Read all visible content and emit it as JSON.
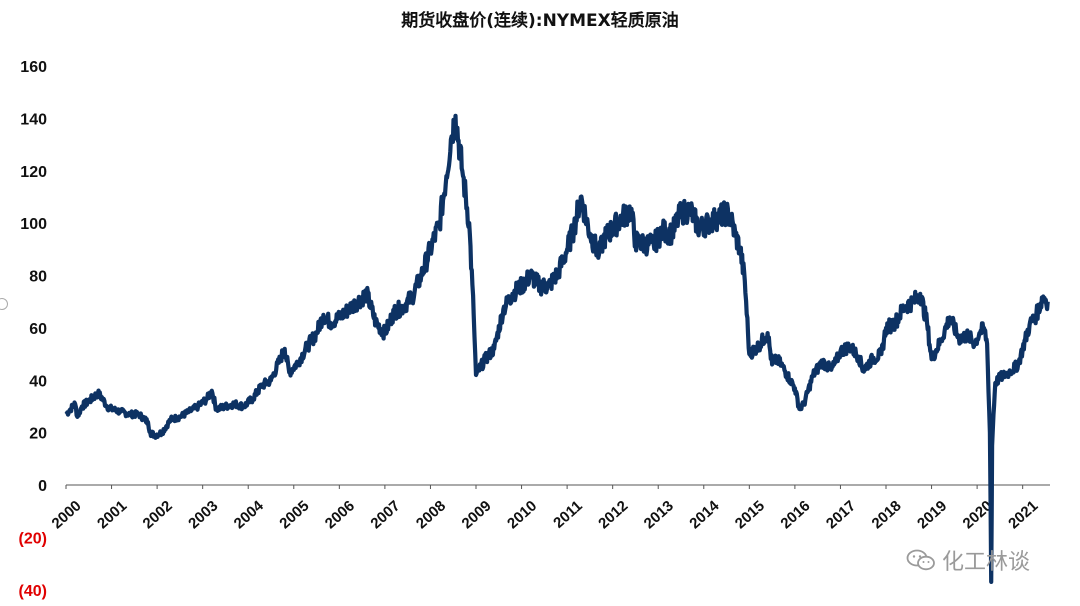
{
  "chart_data": {
    "type": "line",
    "title": "期货收盘价(连续):NYMEX轻质原油",
    "xlabel": "",
    "ylabel": "",
    "ylim": [
      -40,
      160
    ],
    "y_ticks": [
      "160",
      "140",
      "120",
      "100",
      "80",
      "60",
      "40",
      "20",
      "0",
      "(20)",
      "(40)"
    ],
    "x_ticks": [
      "2000",
      "2001",
      "2002",
      "2003",
      "2004",
      "2005",
      "2006",
      "2007",
      "2008",
      "2009",
      "2010",
      "2011",
      "2012",
      "2013",
      "2014",
      "2015",
      "2016",
      "2017",
      "2018",
      "2019",
      "2020",
      "2021"
    ],
    "xlim": [
      2000,
      2021.6
    ],
    "series": [
      {
        "name": "NYMEX轻质原油",
        "color": "#0d3263",
        "x": [
          2000.0,
          2000.1,
          2000.2,
          2000.25,
          2000.35,
          2000.5,
          2000.7,
          2000.8,
          2000.9,
          2001.0,
          2001.2,
          2001.4,
          2001.6,
          2001.8,
          2001.85,
          2001.95,
          2002.1,
          2002.3,
          2002.5,
          2002.7,
          2002.9,
          2003.1,
          2003.2,
          2003.3,
          2003.5,
          2003.7,
          2003.9,
          2004.1,
          2004.3,
          2004.5,
          2004.7,
          2004.8,
          2004.9,
          2005.1,
          2005.3,
          2005.5,
          2005.65,
          2005.8,
          2006.0,
          2006.2,
          2006.4,
          2006.6,
          2006.8,
          2007.0,
          2007.2,
          2007.4,
          2007.6,
          2007.8,
          2008.0,
          2008.2,
          2008.35,
          2008.45,
          2008.55,
          2008.7,
          2008.85,
          2008.95,
          2009.0,
          2009.2,
          2009.4,
          2009.6,
          2009.8,
          2010.0,
          2010.2,
          2010.4,
          2010.6,
          2010.8,
          2011.0,
          2011.15,
          2011.3,
          2011.5,
          2011.7,
          2011.8,
          2012.0,
          2012.2,
          2012.4,
          2012.5,
          2012.7,
          2012.9,
          2013.1,
          2013.3,
          2013.5,
          2013.7,
          2013.9,
          2014.1,
          2014.3,
          2014.5,
          2014.6,
          2014.7,
          2014.8,
          2014.9,
          2015.0,
          2015.2,
          2015.4,
          2015.5,
          2015.6,
          2015.7,
          2015.9,
          2016.0,
          2016.1,
          2016.2,
          2016.4,
          2016.6,
          2016.8,
          2016.9,
          2017.0,
          2017.2,
          2017.4,
          2017.5,
          2017.7,
          2017.9,
          2018.0,
          2018.2,
          2018.4,
          2018.6,
          2018.75,
          2018.9,
          2019.0,
          2019.2,
          2019.4,
          2019.6,
          2019.8,
          2019.95,
          2020.05,
          2020.15,
          2020.22,
          2020.28,
          2020.31,
          2020.33,
          2020.36,
          2020.4,
          2020.5,
          2020.7,
          2020.9,
          2021.0,
          2021.15,
          2021.3,
          2021.45,
          2021.55
        ],
        "values": [
          27,
          29,
          31,
          26,
          30,
          32,
          35,
          33,
          30,
          29,
          28,
          27,
          27,
          24,
          20,
          19,
          20,
          25,
          26,
          28,
          30,
          33,
          36,
          29,
          30,
          31,
          30,
          33,
          38,
          40,
          48,
          52,
          43,
          47,
          53,
          58,
          65,
          62,
          64,
          67,
          70,
          73,
          62,
          58,
          66,
          68,
          72,
          80,
          90,
          100,
          118,
          132,
          141,
          120,
          100,
          65,
          42,
          48,
          52,
          67,
          73,
          76,
          80,
          76,
          76,
          81,
          90,
          98,
          110,
          96,
          88,
          94,
          98,
          102,
          105,
          93,
          92,
          92,
          97,
          96,
          104,
          105,
          98,
          100,
          102,
          104,
          101,
          95,
          90,
          78,
          50,
          53,
          58,
          46,
          48,
          46,
          40,
          37,
          29,
          31,
          42,
          47,
          44,
          47,
          51,
          53,
          49,
          44,
          48,
          50,
          60,
          62,
          68,
          70,
          73,
          62,
          48,
          55,
          64,
          56,
          57,
          54,
          58,
          60,
          54,
          20,
          -37,
          15,
          27,
          39,
          41,
          43,
          46,
          52,
          61,
          65,
          72,
          70
        ]
      }
    ]
  },
  "watermark": {
    "icon": "wechat-icon",
    "text": "化工林谈"
  }
}
